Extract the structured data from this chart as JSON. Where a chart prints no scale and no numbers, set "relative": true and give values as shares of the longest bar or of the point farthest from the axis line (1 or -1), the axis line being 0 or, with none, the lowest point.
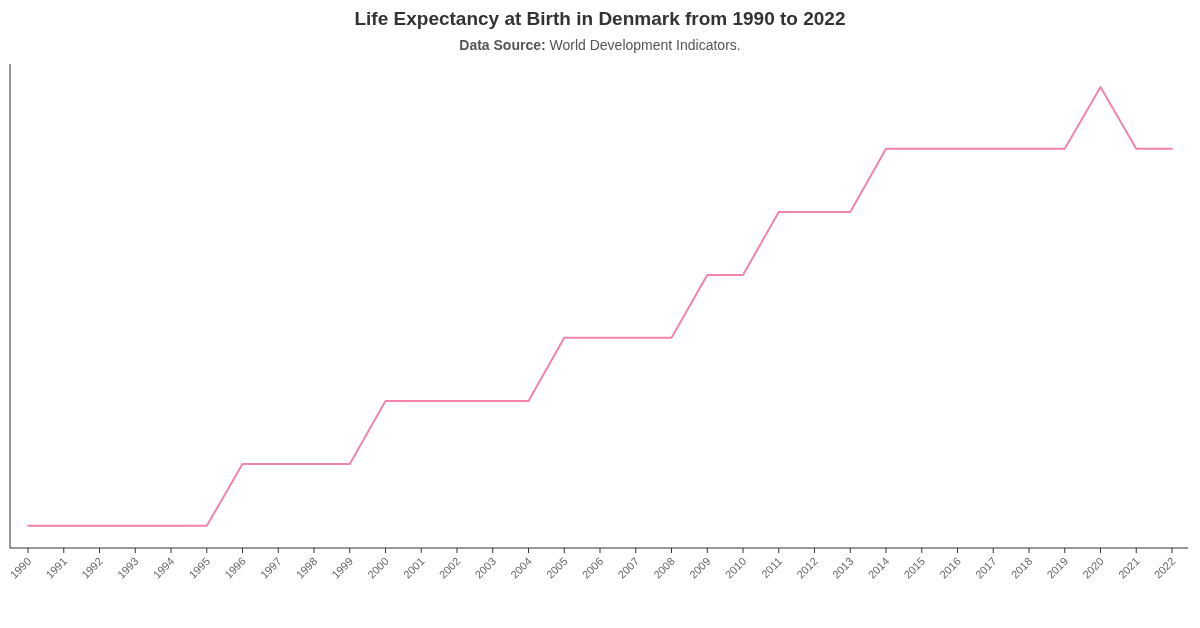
{
  "chart_data": {
    "type": "line",
    "title": "Life Expectancy at Birth in Denmark from 1990 to 2022",
    "subtitle": "Data Source: World Development Indicators.",
    "categories": [
      "1990",
      "1991",
      "1992",
      "1993",
      "1994",
      "1995",
      "1996",
      "1997",
      "1998",
      "1999",
      "2000",
      "2001",
      "2002",
      "2003",
      "2004",
      "2005",
      "2006",
      "2007",
      "2008",
      "2009",
      "2010",
      "2011",
      "2012",
      "2013",
      "2014",
      "2015",
      "2016",
      "2017",
      "2018",
      "2019",
      "2020",
      "2021",
      "2022"
    ],
    "relative": true,
    "series": [
      {
        "color": "#f283ac",
        "values": [
          0.048,
          0.048,
          0.048,
          0.048,
          0.048,
          0.048,
          0.182,
          0.182,
          0.182,
          0.182,
          0.319,
          0.319,
          0.319,
          0.319,
          0.319,
          0.456,
          0.456,
          0.456,
          0.456,
          0.592,
          0.592,
          0.729,
          0.729,
          0.729,
          0.866,
          0.866,
          0.866,
          0.866,
          0.866,
          0.866,
          1,
          0.866,
          0.866
        ]
      }
    ],
    "marker": "none",
    "line_style": "solid"
  }
}
